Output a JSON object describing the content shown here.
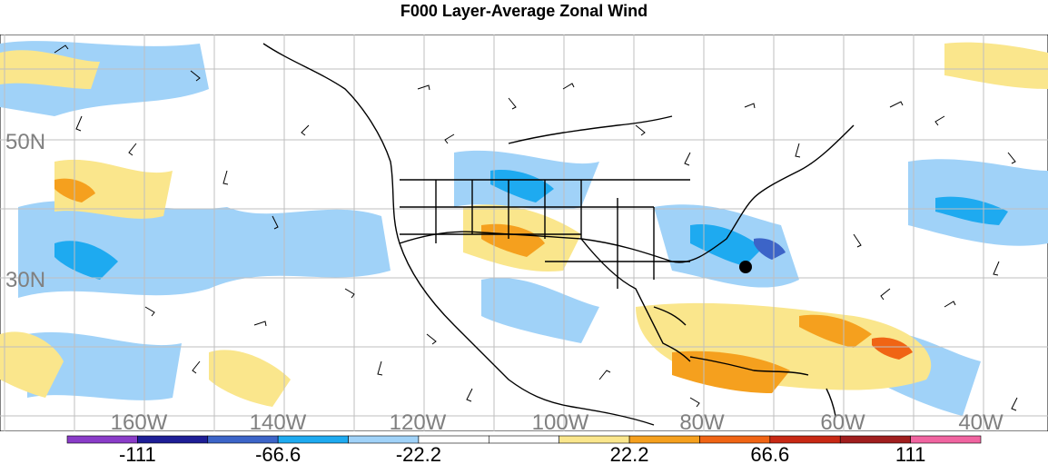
{
  "title": "F000 Layer-Average Zonal Wind",
  "map": {
    "lat_labels": [
      "50N",
      "30N"
    ],
    "lon_labels": [
      "160W",
      "140W",
      "120W",
      "100W",
      "80W",
      "60W",
      "40W"
    ],
    "label_color": "#808080",
    "marker": "black-dot"
  },
  "colorbar": {
    "colors": [
      "#8a3cc8",
      "#1e1e96",
      "#3c64c8",
      "#1eaaf0",
      "#a0d2f8",
      "#ffffff",
      "#ffffff",
      "#fae68c",
      "#f5a01e",
      "#f06414",
      "#c82814",
      "#a01e1e",
      "#f064a0"
    ],
    "tick_labels": [
      "-111",
      "-66.6",
      "-22.2",
      "22.2",
      "66.6",
      "111"
    ]
  }
}
